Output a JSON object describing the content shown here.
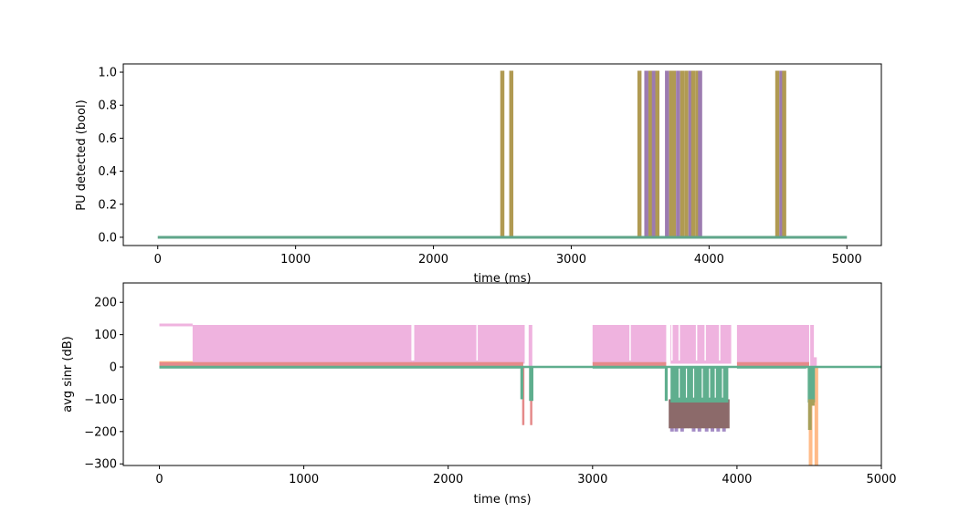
{
  "chart_data": [
    {
      "type": "line",
      "title": "",
      "xlabel": "time (ms)",
      "ylabel": "PU detected (bool)",
      "xlim": [
        -250,
        5250
      ],
      "ylim": [
        -0.05,
        1.05
      ],
      "x_ticks": [
        0,
        1000,
        2000,
        3000,
        4000,
        5000
      ],
      "x_tick_labels": [
        "0",
        "1000",
        "2000",
        "3000",
        "4000",
        "5000"
      ],
      "y_ticks": [
        0.0,
        0.2,
        0.4,
        0.6,
        0.8,
        1.0
      ],
      "y_tick_labels": [
        "0.0",
        "0.2",
        "0.4",
        "0.6",
        "0.8",
        "1.0"
      ],
      "legend": "none",
      "grid": false,
      "series_colors": [
        "#9467bd",
        "#8c564b",
        "#bcbd22",
        "#ff7f0e",
        "#2ca02c"
      ],
      "baseline": {
        "x": [
          0,
          5000
        ],
        "y": [
          0,
          0
        ],
        "color": "#5fa68a"
      },
      "pulses": [
        {
          "start": 2495,
          "end": 2505,
          "color": "#b09a52"
        },
        {
          "start": 2560,
          "end": 2570,
          "color": "#b09a52"
        },
        {
          "start": 3490,
          "end": 3500,
          "color": "#b09a52"
        },
        {
          "start": 3540,
          "end": 3550,
          "color": "#9c7bb0"
        },
        {
          "start": 3570,
          "end": 3580,
          "color": "#b09a52"
        },
        {
          "start": 3595,
          "end": 3605,
          "color": "#9c7bb0"
        },
        {
          "start": 3620,
          "end": 3630,
          "color": "#b09a52"
        },
        {
          "start": 3690,
          "end": 3700,
          "color": "#9c7bb0"
        },
        {
          "start": 3720,
          "end": 3730,
          "color": "#b09a52"
        },
        {
          "start": 3740,
          "end": 3750,
          "color": "#b09a52"
        },
        {
          "start": 3770,
          "end": 3780,
          "color": "#9c7bb0"
        },
        {
          "start": 3800,
          "end": 3810,
          "color": "#b09a52"
        },
        {
          "start": 3830,
          "end": 3840,
          "color": "#b09a52"
        },
        {
          "start": 3860,
          "end": 3870,
          "color": "#9c7bb0"
        },
        {
          "start": 3880,
          "end": 3890,
          "color": "#b09a52"
        },
        {
          "start": 3910,
          "end": 3920,
          "color": "#b09a52"
        },
        {
          "start": 3930,
          "end": 3940,
          "color": "#9c7bb0"
        },
        {
          "start": 4490,
          "end": 4500,
          "color": "#b09a52"
        },
        {
          "start": 4520,
          "end": 4530,
          "color": "#9c7bb0"
        },
        {
          "start": 4540,
          "end": 4550,
          "color": "#b09a52"
        }
      ]
    },
    {
      "type": "line",
      "title": "",
      "xlabel": "time (ms)",
      "ylabel": "avg sinr (dB)",
      "xlim": [
        -250,
        5000
      ],
      "ylim": [
        -305,
        260
      ],
      "x_ticks": [
        0,
        1000,
        2000,
        3000,
        4000,
        5000
      ],
      "x_tick_labels": [
        "0",
        "1000",
        "2000",
        "3000",
        "4000",
        "5000"
      ],
      "y_ticks": [
        -300,
        -200,
        -100,
        0,
        100,
        200
      ],
      "y_tick_labels": [
        "−300",
        "−200",
        "−100",
        "0",
        "100",
        "200"
      ],
      "legend": "none",
      "grid": false,
      "pink": {
        "color": "#efb3df",
        "flat_segment": {
          "x": [
            0,
            230
          ],
          "y": 130
        },
        "bands": [
          {
            "x": [
              230,
              1750
            ],
            "low": 10,
            "high": 130
          },
          {
            "x": [
              1750,
              2530
            ],
            "low": 10,
            "high": 130
          },
          {
            "x": [
              3000,
              3510
            ],
            "low": 10,
            "high": 130
          },
          {
            "x": [
              3540,
              3960
            ],
            "low": 10,
            "high": 130
          },
          {
            "x": [
              4000,
              4500
            ],
            "low": 10,
            "high": 130
          }
        ],
        "spikes": [
          {
            "x": 2570,
            "high": 130
          },
          {
            "x": 4520,
            "high": 130
          },
          {
            "x": 4540,
            "high": 30
          }
        ]
      },
      "red": {
        "color": "#e58a8a",
        "bands": [
          {
            "x": [
              0,
              2520
            ],
            "low": -3,
            "high": 15
          },
          {
            "x": [
              3000,
              3510
            ],
            "low": -3,
            "high": 15
          },
          {
            "x": [
              4000,
              4500
            ],
            "low": -3,
            "high": 15
          }
        ],
        "spikes": [
          {
            "x": 2520,
            "low": -180
          },
          {
            "x": 2575,
            "low": -180
          }
        ]
      },
      "orange": {
        "color": "#ffbb88",
        "spikes": [
          {
            "x": 4510,
            "low": -305
          },
          {
            "x": 4550,
            "low": -305
          }
        ],
        "flat": {
          "x": [
            0,
            230
          ],
          "y": 12
        }
      },
      "purple": {
        "color": "#a38bc4",
        "spikes": [
          {
            "x": 3550,
            "low": -200
          },
          {
            "x": 3580,
            "low": -200
          },
          {
            "x": 3620,
            "low": -200
          },
          {
            "x": 3700,
            "low": -200
          },
          {
            "x": 3740,
            "low": -200
          },
          {
            "x": 3790,
            "low": -200
          },
          {
            "x": 3830,
            "low": -200
          },
          {
            "x": 3870,
            "low": -200
          },
          {
            "x": 3910,
            "low": -200
          }
        ]
      },
      "brown": {
        "color": "#8c6a6a",
        "bands": [
          {
            "x": [
              3540,
              3940
            ],
            "low": -190,
            "high": -100
          }
        ]
      },
      "olive": {
        "color": "#a8a05a",
        "spikes": [
          {
            "x": 4505,
            "low": -195
          },
          {
            "x": 4525,
            "low": -120
          }
        ]
      },
      "green": {
        "color": "#5fae8e",
        "baseline": {
          "x": [
            0,
            5000
          ],
          "y": 0
        },
        "bands": [
          {
            "x": [
              0,
              2500
            ],
            "low": -5,
            "high": 3
          },
          {
            "x": [
              3000,
              3500
            ],
            "low": -5,
            "high": 3
          },
          {
            "x": [
              4000,
              4480
            ],
            "low": -5,
            "high": 3
          }
        ],
        "dips": [
          {
            "x": [
              2500,
              2520
            ],
            "low": -100
          },
          {
            "x": [
              2560,
              2590
            ],
            "low": -105
          },
          {
            "x": [
              3500,
              3520
            ],
            "low": -105
          },
          {
            "x": [
              3540,
              3940
            ],
            "low": -110
          },
          {
            "x": [
              4490,
              4540
            ],
            "low": -110
          }
        ]
      }
    }
  ]
}
